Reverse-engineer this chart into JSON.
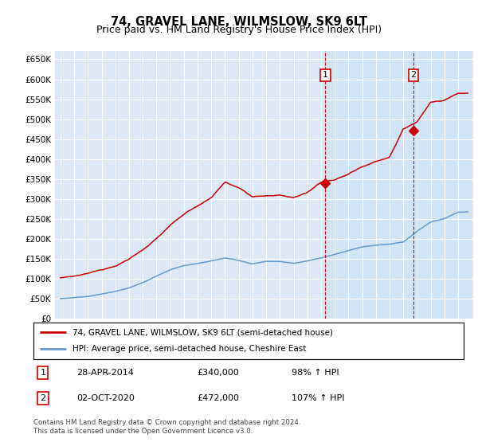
{
  "title": "74, GRAVEL LANE, WILMSLOW, SK9 6LT",
  "subtitle": "Price paid vs. HM Land Registry's House Price Index (HPI)",
  "ylim": [
    0,
    670000
  ],
  "yticks": [
    0,
    50000,
    100000,
    150000,
    200000,
    250000,
    300000,
    350000,
    400000,
    450000,
    500000,
    550000,
    600000,
    650000
  ],
  "plot_bg": "#dce8f5",
  "highlight_bg": "#ccdded",
  "grid_color": "#ffffff",
  "sale1_x": 2014.32,
  "sale1_price": 340000,
  "sale2_x": 2020.75,
  "sale2_price": 472000,
  "legend_entries": [
    "74, GRAVEL LANE, WILMSLOW, SK9 6LT (semi-detached house)",
    "HPI: Average price, semi-detached house, Cheshire East"
  ],
  "annotation1": {
    "num": "1",
    "date": "28-APR-2014",
    "price": "£340,000",
    "hpi": "98% ↑ HPI"
  },
  "annotation2": {
    "num": "2",
    "date": "02-OCT-2020",
    "price": "£472,000",
    "hpi": "107% ↑ HPI"
  },
  "footer": "Contains HM Land Registry data © Crown copyright and database right 2024.\nThis data is licensed under the Open Government Licence v3.0.",
  "red_color": "#cc0000",
  "blue_color": "#6699cc",
  "title_fontsize": 10.5,
  "subtitle_fontsize": 9,
  "tick_fontsize": 7.5,
  "hpi_years": [
    1995,
    1996,
    1997,
    1998,
    1999,
    2000,
    2001,
    2002,
    2003,
    2004,
    2005,
    2006,
    2007,
    2008,
    2009,
    2010,
    2011,
    2012,
    2013,
    2014,
    2015,
    2016,
    2017,
    2018,
    2019,
    2020,
    2021,
    2022,
    2023,
    2024
  ],
  "hpi_vals": [
    51000,
    53000,
    57000,
    63000,
    69000,
    78000,
    92000,
    108000,
    124000,
    134000,
    140000,
    147000,
    155000,
    149000,
    140000,
    147000,
    147000,
    142000,
    148000,
    155000,
    163000,
    172000,
    181000,
    186000,
    188000,
    193000,
    220000,
    243000,
    252000,
    268000
  ],
  "red_years": [
    1995,
    1996,
    1997,
    1998,
    1999,
    2000,
    2001,
    2002,
    2003,
    2004,
    2005,
    2006,
    2007,
    2008,
    2009,
    2010,
    2011,
    2012,
    2013,
    2014,
    2015,
    2016,
    2017,
    2018,
    2019,
    2020,
    2021,
    2022,
    2023,
    2024
  ],
  "red_vals": [
    103000,
    107000,
    113000,
    122000,
    133000,
    150000,
    175000,
    205000,
    238000,
    265000,
    285000,
    305000,
    345000,
    330000,
    305000,
    310000,
    312000,
    305000,
    315000,
    340000,
    345000,
    360000,
    378000,
    390000,
    400000,
    472000,
    490000,
    540000,
    545000,
    565000
  ]
}
